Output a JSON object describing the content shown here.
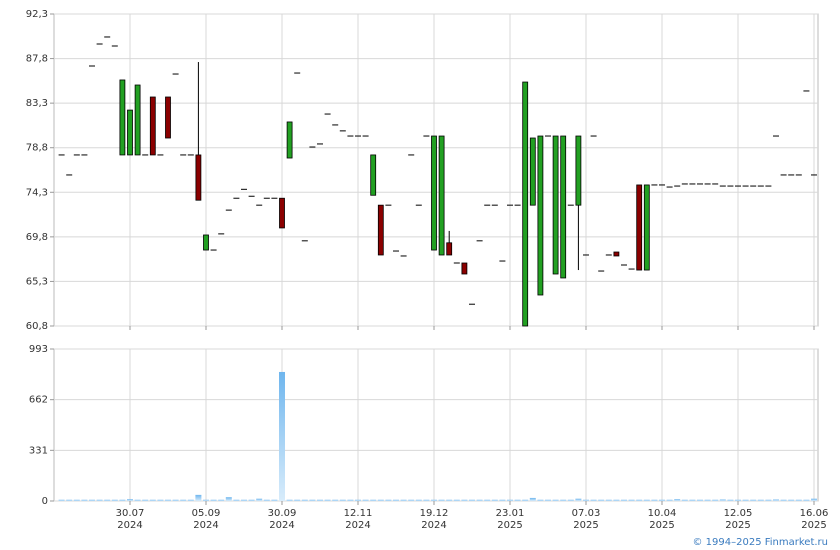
{
  "chart_data": [
    {
      "type": "candlestick",
      "open": [
        78.07,
        76.05,
        78.07,
        78.07,
        87.05,
        89.27,
        89.98,
        89.07,
        78.07,
        78.07,
        78.07,
        78.07,
        83.92,
        78.07,
        83.92,
        86.24,
        78.07,
        78.07,
        78.07,
        68.47,
        68.47,
        70.1,
        72.5,
        73.7,
        74.6,
        73.9,
        73.0,
        73.7,
        73.7,
        73.7,
        77.76,
        86.34,
        69.4,
        78.87,
        79.18,
        82.2,
        81.1,
        80.5,
        79.98,
        79.98,
        79.98,
        74.0,
        73.0,
        73.0,
        68.37,
        67.87,
        78.07,
        73.0,
        79.98,
        68.47,
        67.97,
        69.2,
        67.16,
        67.16,
        63.0,
        69.4,
        73.0,
        73.0,
        67.36,
        73.0,
        73.0,
        60.8,
        73.0,
        63.93,
        79.98,
        66.05,
        65.65,
        73.0,
        73.0,
        67.97,
        79.98,
        66.35,
        67.97,
        68.27,
        66.96,
        66.55,
        75.04,
        66.45,
        75.04,
        75.04,
        74.83,
        74.93,
        75.14,
        75.14,
        75.14,
        75.14,
        75.14,
        74.93,
        74.93,
        74.93,
        74.93,
        74.93,
        74.93,
        74.93,
        79.98,
        76.05,
        76.05,
        76.05,
        84.53,
        76.05
      ],
      "close": [
        78.07,
        76.05,
        78.07,
        78.07,
        87.05,
        89.27,
        89.98,
        89.07,
        85.64,
        82.6,
        85.13,
        78.07,
        78.07,
        78.07,
        79.78,
        86.24,
        78.07,
        78.07,
        73.5,
        69.99,
        68.47,
        70.1,
        72.5,
        73.7,
        74.6,
        73.9,
        73.0,
        73.7,
        73.7,
        70.7,
        81.4,
        86.34,
        69.4,
        78.87,
        79.18,
        82.2,
        81.1,
        80.5,
        79.98,
        79.98,
        79.98,
        78.07,
        67.97,
        73.0,
        68.37,
        67.87,
        78.07,
        73.0,
        79.98,
        79.98,
        79.98,
        67.97,
        67.16,
        66.05,
        63.0,
        69.4,
        73.0,
        73.0,
        67.36,
        73.0,
        73.0,
        85.43,
        79.78,
        79.98,
        79.98,
        79.98,
        79.98,
        73.0,
        79.98,
        67.97,
        79.98,
        66.35,
        67.97,
        67.87,
        66.96,
        66.55,
        66.45,
        75.04,
        75.04,
        75.04,
        74.83,
        74.93,
        75.14,
        75.14,
        75.14,
        75.14,
        75.14,
        74.93,
        74.93,
        74.93,
        74.93,
        74.93,
        74.93,
        74.93,
        79.98,
        76.05,
        76.05,
        76.05,
        84.53,
        76.05
      ],
      "high": [
        null,
        null,
        null,
        null,
        null,
        null,
        null,
        null,
        null,
        null,
        null,
        null,
        null,
        null,
        null,
        null,
        null,
        null,
        87.45,
        null,
        null,
        null,
        null,
        null,
        null,
        null,
        null,
        null,
        null,
        null,
        null,
        null,
        null,
        null,
        null,
        null,
        null,
        null,
        null,
        null,
        null,
        null,
        null,
        null,
        null,
        null,
        null,
        null,
        null,
        null,
        null,
        70.4,
        null,
        null,
        null,
        null,
        null,
        null,
        null,
        null,
        null,
        null,
        null,
        null,
        null,
        null,
        null,
        null,
        null,
        null,
        null,
        null,
        null,
        null,
        null,
        null,
        null,
        null,
        null,
        null,
        null,
        null,
        null,
        null,
        null,
        null,
        null,
        null,
        null,
        null,
        null,
        null,
        null,
        null,
        null,
        null,
        null,
        null,
        null,
        null
      ],
      "low": [
        null,
        null,
        null,
        null,
        null,
        null,
        null,
        null,
        null,
        null,
        null,
        null,
        null,
        null,
        null,
        null,
        null,
        null,
        null,
        null,
        null,
        null,
        null,
        null,
        null,
        null,
        null,
        null,
        null,
        null,
        null,
        null,
        null,
        null,
        null,
        null,
        null,
        null,
        null,
        null,
        null,
        null,
        null,
        null,
        null,
        null,
        null,
        null,
        null,
        null,
        null,
        null,
        null,
        null,
        null,
        null,
        null,
        null,
        null,
        null,
        null,
        null,
        null,
        null,
        null,
        null,
        null,
        null,
        66.45,
        null,
        null,
        null,
        null,
        null,
        null,
        null,
        null,
        null,
        null,
        null,
        null,
        null,
        null,
        null,
        null,
        null,
        null,
        null,
        null,
        null,
        null,
        null,
        null,
        null,
        null,
        null,
        null,
        null,
        null,
        null
      ],
      "up_color": "#22a022",
      "down_color": "#8b0000",
      "ylim": [
        60.8,
        92.3
      ],
      "yticks": [
        {
          "value": 60.8,
          "label": "60,8"
        },
        {
          "value": 65.3,
          "label": "65,3"
        },
        {
          "value": 69.8,
          "label": "69,8"
        },
        {
          "value": 74.3,
          "label": "74,3"
        },
        {
          "value": 78.8,
          "label": "78,8"
        },
        {
          "value": 83.3,
          "label": "83,3"
        },
        {
          "value": 87.8,
          "label": "87,8"
        },
        {
          "value": 92.3,
          "label": "92,3"
        }
      ],
      "xticks": [
        {
          "value": 9
        },
        {
          "value": 19
        },
        {
          "value": 29
        },
        {
          "value": 39
        },
        {
          "value": 49
        },
        {
          "value": 59
        },
        {
          "value": 69
        },
        {
          "value": 79
        },
        {
          "value": 89
        },
        {
          "value": 99
        }
      ],
      "grid": true
    },
    {
      "type": "bar",
      "values": [
        8,
        8,
        8,
        8,
        8,
        8,
        8,
        8,
        8,
        12,
        8,
        8,
        8,
        8,
        8,
        8,
        8,
        8,
        40,
        8,
        8,
        8,
        25,
        8,
        8,
        8,
        15,
        8,
        8,
        843,
        8,
        8,
        8,
        8,
        8,
        8,
        8,
        8,
        8,
        8,
        8,
        8,
        8,
        8,
        8,
        8,
        8,
        8,
        8,
        8,
        8,
        8,
        8,
        8,
        8,
        8,
        8,
        8,
        8,
        8,
        8,
        8,
        20,
        8,
        8,
        8,
        8,
        8,
        15,
        8,
        8,
        8,
        8,
        8,
        8,
        8,
        8,
        8,
        8,
        8,
        8,
        12,
        8,
        8,
        8,
        8,
        8,
        10,
        8,
        8,
        8,
        8,
        8,
        8,
        10,
        8,
        8,
        8,
        8,
        15
      ],
      "color": "#8ec5f0",
      "ylim": [
        0,
        993
      ],
      "yticks": [
        0,
        331,
        662,
        993
      ],
      "xticks": [
        {
          "value": 9,
          "label": "30.07",
          "year": "2024"
        },
        {
          "value": 19,
          "label": "05.09",
          "year": "2024"
        },
        {
          "value": 29,
          "label": "30.09",
          "year": "2024"
        },
        {
          "value": 39,
          "label": "12.11",
          "year": "2024"
        },
        {
          "value": 49,
          "label": "19.12",
          "year": "2024"
        },
        {
          "value": 59,
          "label": "23.01",
          "year": "2025"
        },
        {
          "value": 69,
          "label": "07.03",
          "year": "2025"
        },
        {
          "value": 79,
          "label": "10.04",
          "year": "2025"
        },
        {
          "value": 89,
          "label": "12.05",
          "year": "2025"
        },
        {
          "value": 99,
          "label": "16.06",
          "year": "2025"
        }
      ],
      "grid": true
    }
  ],
  "footer": "© 1994–2025 Finmarket.ru"
}
